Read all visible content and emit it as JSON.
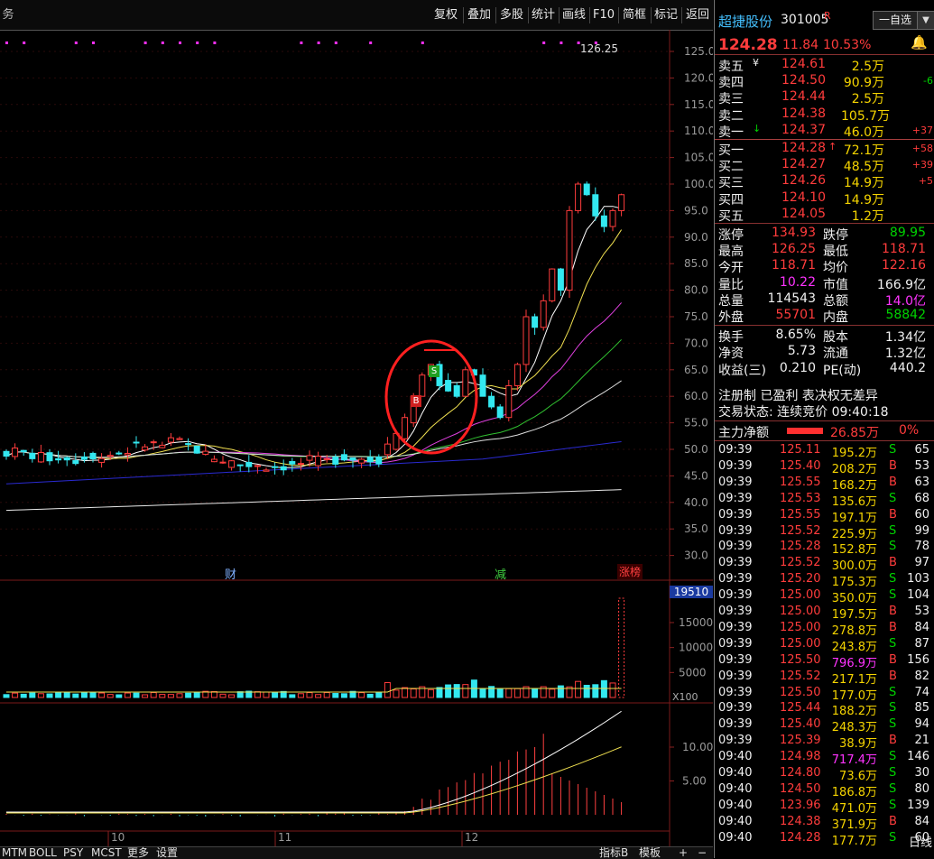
{
  "toolbar": {
    "left_label": "务",
    "buttons": [
      "复权",
      "叠加",
      "多股",
      "统计",
      "画线",
      "F10",
      "简框",
      "标记",
      "返回"
    ]
  },
  "price_axis": [
    "125.0",
    "120.0",
    "115.0",
    "110.0",
    "105.0",
    "100.0",
    "95.0",
    "90.0",
    "85.0",
    "80.0",
    "75.0",
    "70.0",
    "65.0",
    "60.0",
    "55.0",
    "50.0",
    "45.0",
    "40.0",
    "35.0",
    "30.0"
  ],
  "high_label": "126.25",
  "events": {
    "cai": "财",
    "jian": "减",
    "zhangbang": "涨榜"
  },
  "markers": {
    "buy": "B",
    "sell": "S"
  },
  "volume_axis": {
    "badge": "19510",
    "ticks": [
      "15000",
      "10000",
      "5000"
    ],
    "unit": "X100"
  },
  "macd_axis": [
    "10.00",
    "5.00"
  ],
  "date_labels": [
    "10",
    "11",
    "12"
  ],
  "bottom_tabs": [
    "MTM",
    "BOLL",
    "PSY",
    "MCST",
    "更多",
    "设置"
  ],
  "bottom_right": {
    "indicator": "指标B",
    "template": "模板",
    "plus": "+",
    "minus": "−",
    "dayline": "日线"
  },
  "stock": {
    "name": "超捷股份",
    "code": "301005",
    "tag": "R",
    "select_button": "一自选",
    "price": "124.28",
    "change": "11.84",
    "pct": "10.53%"
  },
  "asks": [
    {
      "label": "卖五",
      "sym": "¥",
      "price": "124.61",
      "vol": "2.5万",
      "delta": ""
    },
    {
      "label": "卖四",
      "sym": "",
      "price": "124.50",
      "vol": "90.9万",
      "delta": "-6"
    },
    {
      "label": "卖三",
      "sym": "",
      "price": "124.44",
      "vol": "2.5万",
      "delta": ""
    },
    {
      "label": "卖二",
      "sym": "",
      "price": "124.38",
      "vol": "105.7万",
      "delta": ""
    },
    {
      "label": "卖一",
      "sym": "↓",
      "price": "124.37",
      "vol": "46.0万",
      "delta": "+37"
    }
  ],
  "bids": [
    {
      "label": "买一",
      "sym": "↑",
      "price": "124.28",
      "vol": "72.1万",
      "delta": "+58"
    },
    {
      "label": "买二",
      "sym": "",
      "price": "124.27",
      "vol": "48.5万",
      "delta": "+39"
    },
    {
      "label": "买三",
      "sym": "",
      "price": "124.26",
      "vol": "14.9万",
      "delta": "+5"
    },
    {
      "label": "买四",
      "sym": "",
      "price": "124.10",
      "vol": "14.9万",
      "delta": ""
    },
    {
      "label": "买五",
      "sym": "",
      "price": "124.05",
      "vol": "1.2万",
      "delta": ""
    }
  ],
  "stats": [
    {
      "l1": "涨停",
      "v1": "134.93",
      "c1": "red",
      "l2": "跌停",
      "v2": "89.95",
      "c2": "grn"
    },
    {
      "l1": "最高",
      "v1": "126.25",
      "c1": "red",
      "l2": "最低",
      "v2": "118.71",
      "c2": "red"
    },
    {
      "l1": "今开",
      "v1": "118.71",
      "c1": "red",
      "l2": "均价",
      "v2": "122.16",
      "c2": "red"
    },
    {
      "l1": "量比",
      "v1": "10.22",
      "c1": "mag",
      "l2": "市值",
      "v2": "166.9亿",
      "c2": "wht"
    },
    {
      "l1": "总量",
      "v1": "114543",
      "c1": "wht",
      "l2": "总额",
      "v2": "14.0亿",
      "c2": "mag"
    },
    {
      "l1": "外盘",
      "v1": "55701",
      "c1": "red",
      "l2": "内盘",
      "v2": "58842",
      "c2": "grn"
    },
    {
      "l1": "换手",
      "v1": "8.65%",
      "c1": "wht",
      "l2": "股本",
      "v2": "1.34亿",
      "c2": "wht"
    },
    {
      "l1": "净资",
      "v1": "5.73",
      "c1": "wht",
      "l2": "流通",
      "v2": "1.32亿",
      "c2": "wht"
    },
    {
      "l1": "收益(三)",
      "v1": "0.210",
      "c1": "wht",
      "l2": "PE(动)",
      "v2": "440.2",
      "c2": "wht"
    }
  ],
  "info_line1": "注册制 已盈利 表决权无差异",
  "info_line2": "交易状态: 连续竞价 09:40:18",
  "main_flow": {
    "label": "主力净额",
    "value": "26.85万",
    "pct": "0%"
  },
  "ticks": [
    {
      "t": "09:39",
      "p": "125.11",
      "v": "195.2万",
      "s": "S",
      "n": "65"
    },
    {
      "t": "09:39",
      "p": "125.40",
      "v": "208.2万",
      "s": "B",
      "n": "53"
    },
    {
      "t": "09:39",
      "p": "125.55",
      "v": "168.2万",
      "s": "B",
      "n": "63"
    },
    {
      "t": "09:39",
      "p": "125.53",
      "v": "135.6万",
      "s": "S",
      "n": "68"
    },
    {
      "t": "09:39",
      "p": "125.55",
      "v": "197.1万",
      "s": "B",
      "n": "60"
    },
    {
      "t": "09:39",
      "p": "125.52",
      "v": "225.9万",
      "s": "S",
      "n": "99"
    },
    {
      "t": "09:39",
      "p": "125.28",
      "v": "152.8万",
      "s": "S",
      "n": "78"
    },
    {
      "t": "09:39",
      "p": "125.52",
      "v": "300.0万",
      "s": "B",
      "n": "97"
    },
    {
      "t": "09:39",
      "p": "125.20",
      "v": "175.3万",
      "s": "S",
      "n": "103"
    },
    {
      "t": "09:39",
      "p": "125.00",
      "v": "350.0万",
      "s": "S",
      "n": "104"
    },
    {
      "t": "09:39",
      "p": "125.00",
      "v": "197.5万",
      "s": "B",
      "n": "53"
    },
    {
      "t": "09:39",
      "p": "125.00",
      "v": "278.8万",
      "s": "B",
      "n": "84"
    },
    {
      "t": "09:39",
      "p": "125.00",
      "v": "243.8万",
      "s": "S",
      "n": "87"
    },
    {
      "t": "09:39",
      "p": "125.50",
      "v": "796.9万",
      "s": "B",
      "n": "156"
    },
    {
      "t": "09:39",
      "p": "125.52",
      "v": "217.1万",
      "s": "B",
      "n": "82"
    },
    {
      "t": "09:39",
      "p": "125.50",
      "v": "177.0万",
      "s": "S",
      "n": "74"
    },
    {
      "t": "09:39",
      "p": "125.44",
      "v": "188.2万",
      "s": "S",
      "n": "85"
    },
    {
      "t": "09:39",
      "p": "125.40",
      "v": "248.3万",
      "s": "S",
      "n": "94"
    },
    {
      "t": "09:39",
      "p": "125.39",
      "v": "38.9万",
      "s": "B",
      "n": "21"
    },
    {
      "t": "09:40",
      "p": "124.98",
      "v": "717.4万",
      "s": "S",
      "n": "146"
    },
    {
      "t": "09:40",
      "p": "124.80",
      "v": "73.6万",
      "s": "S",
      "n": "30"
    },
    {
      "t": "09:40",
      "p": "124.50",
      "v": "186.8万",
      "s": "S",
      "n": "80"
    },
    {
      "t": "09:40",
      "p": "123.96",
      "v": "471.0万",
      "s": "S",
      "n": "139"
    },
    {
      "t": "09:40",
      "p": "124.38",
      "v": "371.9万",
      "s": "B",
      "n": "84"
    },
    {
      "t": "09:40",
      "p": "124.28",
      "v": "177.7万",
      "s": "S",
      "n": "60"
    }
  ],
  "colors": {
    "up": "#ff3c3c",
    "down": "#33e8f0",
    "ma5": "#ffffff",
    "ma10": "#f0e050",
    "ma20": "#e040e0",
    "ma30": "#30c030",
    "ma60": "#dddddd",
    "ma120": "#2a2ad0",
    "ma250": "#e8e8e8"
  }
}
